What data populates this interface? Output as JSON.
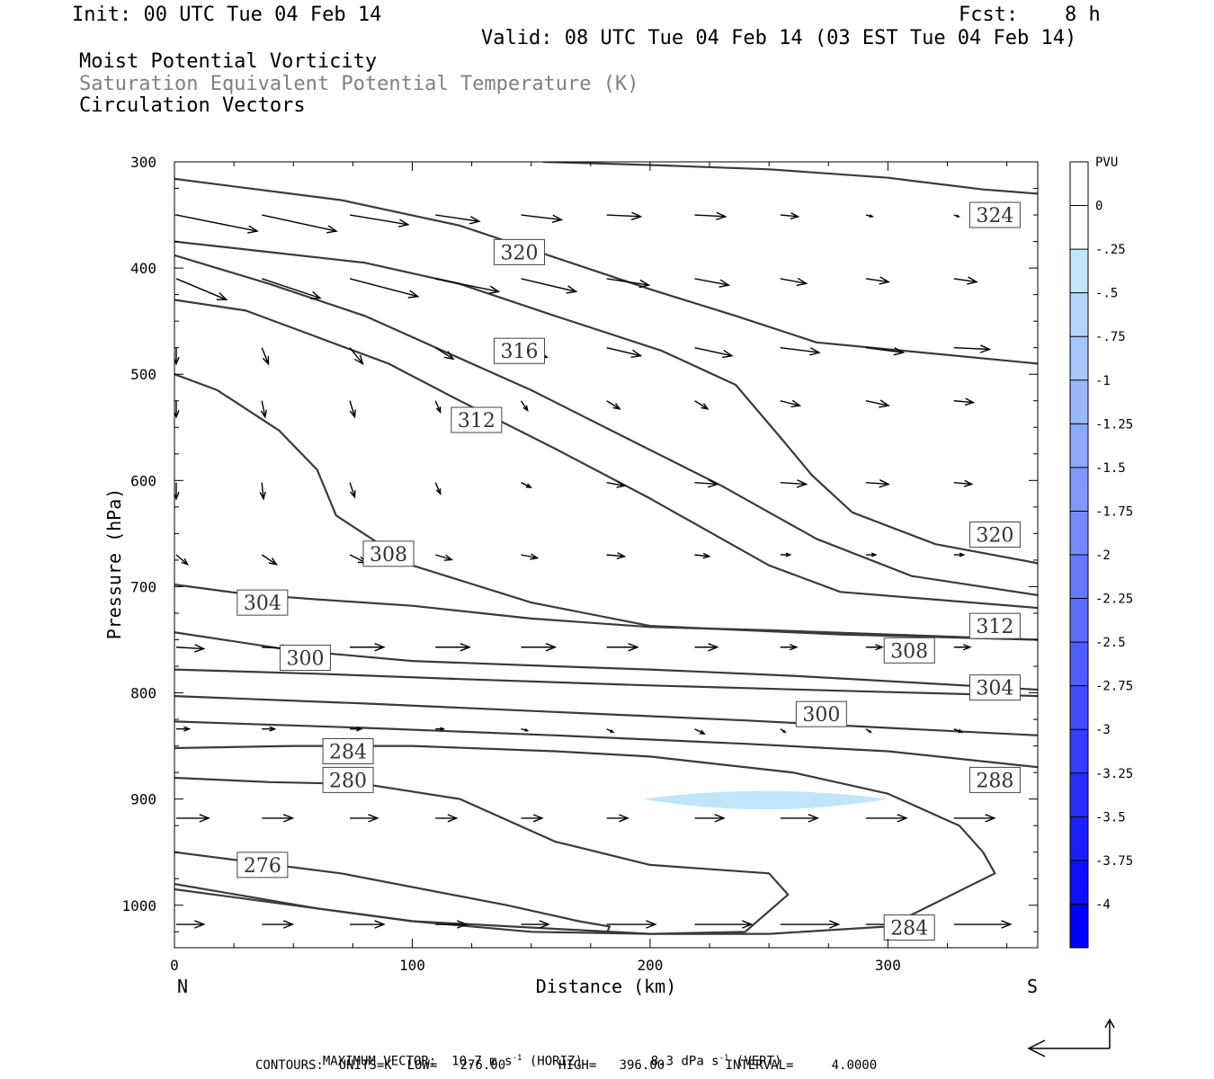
{
  "header": {
    "init": "Init: 00 UTC Tue 04 Feb 14",
    "fcst_label": "Fcst:",
    "fcst_value": "8 h",
    "valid": "Valid: 08 UTC Tue 04 Feb 14 (03 EST Tue 04 Feb 14)",
    "field1": "Moist Potential Vorticity",
    "field2": "Saturation Equivalent Potential Temperature (K)",
    "field3": "Circulation Vectors"
  },
  "footer": {
    "max_vector_label": "MAXIMUM VECTOR:",
    "horiz_value": "10.7 m s",
    "horiz_exp": "-1",
    "horiz_tag": "(HORIZ)",
    "vert_value": "8.3 dPa s",
    "vert_exp": "-1",
    "vert_tag": "(VERT)",
    "contours_line": "CONTOURS:  UNITS=K  LOW=   276.00       HIGH=   396.00        INTERVAL=     4.0000"
  },
  "colors": {
    "contour": "#3a3a3a",
    "pv_light": "#bfe6fa",
    "axis": "#000000"
  },
  "chart_data": {
    "type": "line",
    "xlabel": "Distance (km)",
    "ylabel": "Pressure (hPa)",
    "xlim": [
      0,
      363
    ],
    "ylim": [
      1040,
      300
    ],
    "xticks": [
      0,
      100,
      200,
      300
    ],
    "yticks": [
      300,
      400,
      500,
      600,
      700,
      800,
      900,
      1000
    ],
    "x_end_labels": {
      "left": "N",
      "right": "S"
    },
    "colorbar": {
      "title": "PVU",
      "tick_labels": [
        "0",
        "-.25",
        "-.5",
        "-.75",
        "-1",
        "-1.25",
        "-1.5",
        "-1.75",
        "-2",
        "-2.25",
        "-2.5",
        "-2.75",
        "-3",
        "-3.25",
        "-3.5",
        "-3.75",
        "-4"
      ],
      "colors": [
        "#ffffff",
        "#ffffff",
        "#bfe6fa",
        "#b2d6fb",
        "#a6c7fb",
        "#99b8fb",
        "#8ca9fc",
        "#7f99fc",
        "#738afc",
        "#667bfc",
        "#596cfd",
        "#4c5cfd",
        "#404dfd",
        "#333efe",
        "#262ffe",
        "#191ffe",
        "#0d10ff",
        "#0000ff"
      ]
    },
    "pv_negative_regions": [
      {
        "level": "-.25 to -.5",
        "x_range": [
          197,
          300
        ],
        "p_center": 900
      }
    ],
    "theta_e_contours": [
      {
        "label": "276",
        "x": [
          0,
          70,
          140,
          170,
          183,
          182
        ],
        "y": [
          950,
          970,
          1000,
          1015,
          1020,
          1025
        ]
      },
      {
        "label": "280",
        "x": [
          0,
          40,
          80,
          120,
          160,
          200,
          250,
          258,
          240,
          200,
          150,
          100,
          60,
          0
        ],
        "y": [
          880,
          884,
          886,
          900,
          940,
          962,
          970,
          990,
          1025,
          1027,
          1025,
          1015,
          1003,
          980
        ]
      },
      {
        "label": "284",
        "x": [
          0,
          50,
          100,
          160,
          200,
          260,
          300,
          330,
          340,
          345,
          300,
          250,
          200,
          100,
          0
        ],
        "y": [
          852,
          850,
          850,
          855,
          860,
          875,
          895,
          925,
          950,
          970,
          1020,
          1027,
          1027,
          1015,
          985
        ]
      },
      {
        "label": "288",
        "x": [
          0,
          80,
          160,
          240,
          300,
          363
        ],
        "y": [
          827,
          833,
          840,
          848,
          855,
          870
        ]
      },
      {
        "label": "300",
        "x": [
          0,
          80,
          160,
          240,
          300,
          363
        ],
        "y": [
          803,
          810,
          818,
          826,
          833,
          840
        ]
      },
      {
        "label": "304",
        "x": [
          0,
          60,
          120,
          200,
          280,
          363
        ],
        "y": [
          778,
          782,
          787,
          793,
          798,
          803
        ]
      },
      {
        "label": "308",
        "x": [
          0,
          50,
          100,
          160,
          200,
          260,
          300,
          363
        ],
        "y": [
          743,
          760,
          770,
          775,
          778,
          784,
          789,
          797
        ]
      },
      {
        "label": "312",
        "x": [
          0,
          30,
          60,
          100,
          150,
          200,
          250,
          300,
          363
        ],
        "y": [
          698,
          707,
          712,
          718,
          730,
          738,
          741,
          745,
          750
        ]
      },
      {
        "label": "308",
        "x": [
          0,
          18,
          44,
          60,
          68,
          100,
          150,
          200,
          280,
          363
        ],
        "y": [
          500,
          515,
          553,
          590,
          633,
          680,
          715,
          737,
          745,
          750
        ]
      },
      {
        "label": "312",
        "x": [
          0,
          30,
          60,
          90,
          120,
          160,
          200,
          250,
          280,
          363
        ],
        "y": [
          430,
          440,
          465,
          490,
          525,
          570,
          617,
          680,
          705,
          720
        ]
      },
      {
        "label": "316",
        "x": [
          0,
          40,
          80,
          110,
          150,
          190,
          230,
          270,
          310,
          363
        ],
        "y": [
          388,
          415,
          445,
          475,
          515,
          560,
          605,
          655,
          690,
          708
        ]
      },
      {
        "label": "320",
        "x": [
          0,
          40,
          80,
          120,
          160,
          205,
          236,
          255,
          268,
          285,
          320,
          363
        ],
        "y": [
          375,
          385,
          395,
          415,
          445,
          478,
          510,
          560,
          595,
          630,
          660,
          678
        ]
      },
      {
        "label": "320",
        "x": [
          0,
          70,
          120,
          160,
          200,
          236,
          270,
          363
        ],
        "y": [
          316,
          336,
          360,
          390,
          420,
          445,
          470,
          490
        ]
      },
      {
        "label": "324",
        "x": [
          155,
          200,
          250,
          300,
          340,
          363
        ],
        "y": [
          300,
          303,
          307,
          315,
          326,
          330
        ]
      }
    ],
    "contour_labels": [
      {
        "text": "324",
        "x": 345,
        "p": 350
      },
      {
        "text": "320",
        "x": 145,
        "p": 385
      },
      {
        "text": "316",
        "x": 145,
        "p": 478
      },
      {
        "text": "312",
        "x": 127,
        "p": 543
      },
      {
        "text": "320",
        "x": 345,
        "p": 651
      },
      {
        "text": "308",
        "x": 90,
        "p": 669
      },
      {
        "text": "304",
        "x": 37,
        "p": 715
      },
      {
        "text": "312",
        "x": 345,
        "p": 737
      },
      {
        "text": "308",
        "x": 309,
        "p": 760
      },
      {
        "text": "300",
        "x": 55,
        "p": 767
      },
      {
        "text": "304",
        "x": 345,
        "p": 795
      },
      {
        "text": "300",
        "x": 272,
        "p": 820
      },
      {
        "text": "284",
        "x": 73,
        "p": 855
      },
      {
        "text": "288",
        "x": 345,
        "p": 882
      },
      {
        "text": "280",
        "x": 73,
        "p": 882
      },
      {
        "text": "276",
        "x": 37,
        "p": 962
      },
      {
        "text": "284",
        "x": 309,
        "p": 1021
      }
    ],
    "vectors": {
      "columns_x": [
        0,
        36,
        73,
        109,
        145,
        181,
        218,
        254,
        290,
        327
      ],
      "rows": [
        {
          "p": 350,
          "u": [
            5.0,
            4.6,
            3.6,
            2.7,
            2.5,
            2.1,
            1.9,
            1.1,
            0.4,
            0.3
          ],
          "v": [
            -1.0,
            -1.0,
            -0.6,
            -0.4,
            -0.3,
            -0.1,
            -0.1,
            -0.1,
            -0.1,
            -0.1
          ]
        },
        {
          "p": 410,
          "u": [
            3.1,
            3.6,
            4.2,
            3.9,
            3.4,
            2.6,
            2.1,
            1.6,
            1.4,
            1.4
          ],
          "v": [
            -1.3,
            -1.2,
            -1.1,
            -0.8,
            -0.8,
            -0.4,
            -0.4,
            -0.3,
            -0.2,
            -0.2
          ]
        },
        {
          "p": 475,
          "u": [
            0.0,
            0.4,
            0.8,
            1.1,
            1.6,
            2.1,
            2.3,
            2.4,
            2.3,
            2.2
          ],
          "v": [
            -1.0,
            -1.0,
            -1.0,
            -0.7,
            -0.6,
            -0.5,
            -0.5,
            -0.3,
            -0.3,
            -0.1
          ]
        },
        {
          "p": 525,
          "u": [
            0.0,
            0.2,
            0.3,
            0.3,
            0.4,
            0.8,
            0.8,
            1.2,
            1.4,
            1.2
          ],
          "v": [
            -1.0,
            -1.0,
            -1.0,
            -0.7,
            -0.6,
            -0.5,
            -0.5,
            -0.3,
            -0.3,
            -0.1
          ]
        },
        {
          "p": 602,
          "u": [
            0.0,
            0.1,
            0.3,
            0.3,
            0.6,
            1.1,
            1.4,
            1.6,
            1.4,
            1.1
          ],
          "v": [
            -1.0,
            -1.0,
            -0.9,
            -0.7,
            -0.3,
            -0.2,
            -0.1,
            -0.1,
            -0.1,
            -0.1
          ]
        },
        {
          "p": 670,
          "u": [
            0.7,
            0.9,
            1.0,
            1.0,
            1.0,
            1.1,
            0.9,
            0.6,
            0.6,
            0.6
          ],
          "v": [
            -0.6,
            -0.6,
            -0.5,
            -0.3,
            -0.2,
            -0.1,
            -0.1,
            0.0,
            0.0,
            0.0
          ]
        },
        {
          "p": 757,
          "u": [
            1.7,
            1.8,
            2.1,
            2.1,
            2.1,
            1.9,
            1.4,
            1.0,
            1.0,
            1.0
          ],
          "v": [
            -0.1,
            -0.1,
            0.0,
            0.0,
            0.0,
            0.0,
            0.0,
            0.0,
            0.0,
            0.0
          ]
        },
        {
          "p": 834,
          "u": [
            0.8,
            0.8,
            0.7,
            0.5,
            0.4,
            0.4,
            0.6,
            0.3,
            0.3,
            0.5
          ],
          "v": [
            0.0,
            0.0,
            0.0,
            0.0,
            -0.1,
            -0.2,
            -0.3,
            -0.2,
            -0.2,
            -0.2
          ]
        },
        {
          "p": 918,
          "u": [
            2.0,
            1.9,
            1.7,
            1.3,
            1.3,
            1.3,
            1.8,
            2.3,
            2.5,
            2.5
          ],
          "v": [
            0.0,
            0.0,
            0.0,
            0.0,
            0.0,
            0.0,
            0.0,
            0.0,
            0.0,
            0.0
          ]
        },
        {
          "p": 1018,
          "u": [
            1.7,
            1.9,
            2.1,
            1.9,
            1.7,
            3.0,
            3.5,
            3.6,
            3.7,
            3.5
          ],
          "v": [
            0.0,
            0.0,
            0.0,
            0.0,
            0.0,
            0.0,
            0.0,
            0.0,
            0.0,
            0.0
          ]
        }
      ]
    }
  }
}
